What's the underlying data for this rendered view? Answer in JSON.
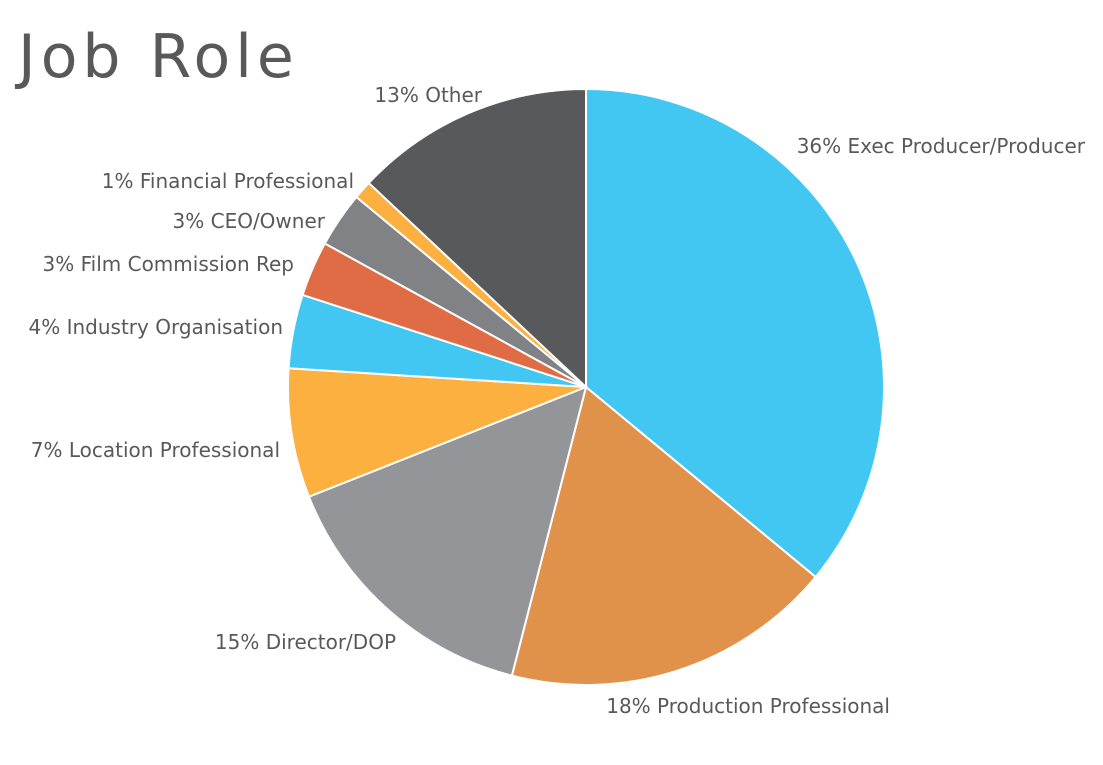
{
  "chart_data": {
    "type": "pie",
    "title": "Job Role",
    "slices": [
      {
        "label": "36% Exec Producer/Producer",
        "value": 36,
        "color": "#41c7f2"
      },
      {
        "label": "18% Production Professional",
        "value": 18,
        "color": "#e0924b"
      },
      {
        "label": "15% Director/DOP",
        "value": 15,
        "color": "#939598"
      },
      {
        "label": "7% Location Professional",
        "value": 7,
        "color": "#fbb040"
      },
      {
        "label": "4% Industry Organisation",
        "value": 4,
        "color": "#41c7f2"
      },
      {
        "label": "3% Film Commission Rep",
        "value": 3,
        "color": "#e06c45"
      },
      {
        "label": "3% CEO/Owner",
        "value": 3,
        "color": "#808285"
      },
      {
        "label": "1% Financial Professional",
        "value": 1,
        "color": "#fbb040"
      },
      {
        "label": "13% Other",
        "value": 13,
        "color": "#58595b"
      }
    ],
    "start": "12 o'clock",
    "direction": "clockwise",
    "legend": "none"
  }
}
